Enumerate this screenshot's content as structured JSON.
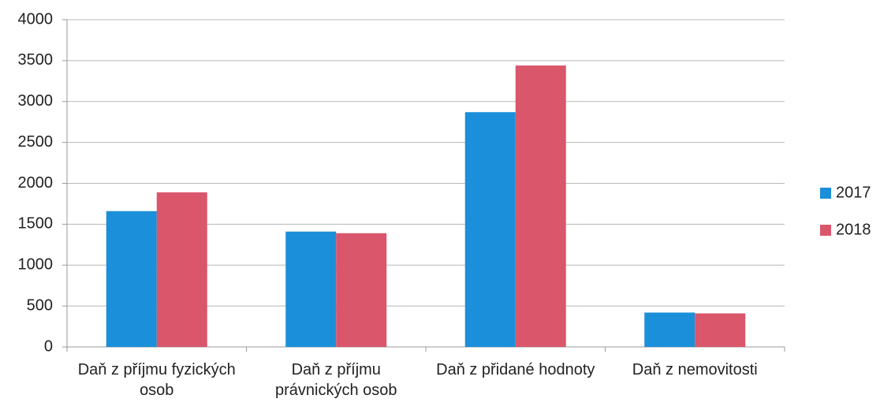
{
  "chart_data": {
    "type": "bar",
    "categories": [
      "Daň z příjmu fyzických osob",
      "Daň z příjmu právnických osob",
      "Daň z přidané hodnoty",
      "Daň z nemovitosti"
    ],
    "series": [
      {
        "name": "2017",
        "color": "#1b8fd9",
        "values": [
          1660,
          1410,
          2870,
          420
        ]
      },
      {
        "name": "2018",
        "color": "#d9566b",
        "values": [
          1890,
          1390,
          3440,
          410
        ]
      }
    ],
    "ylim": [
      0,
      4000
    ],
    "yticks": [
      0,
      500,
      1000,
      1500,
      2000,
      2500,
      3000,
      3500,
      4000
    ],
    "grid": true,
    "legend": "right"
  }
}
